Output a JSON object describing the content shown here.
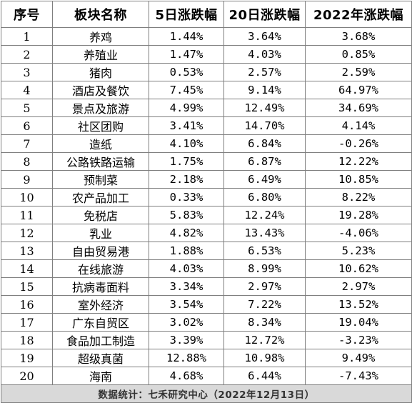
{
  "headers": [
    "序号",
    "板块名称",
    "5日涨跌幅",
    "20日涨跌幅",
    "2022年涨跌幅"
  ],
  "rows": [
    [
      "1",
      "养鸡",
      "1.44%",
      "3.64%",
      "3.68%"
    ],
    [
      "2",
      "养殖业",
      "1.47%",
      "4.03%",
      "0.85%"
    ],
    [
      "3",
      "猪肉",
      "0.53%",
      "2.57%",
      "2.59%"
    ],
    [
      "4",
      "酒店及餐饮",
      "7.45%",
      "9.14%",
      "64.97%"
    ],
    [
      "5",
      "景点及旅游",
      "4.99%",
      "12.49%",
      "34.69%"
    ],
    [
      "6",
      "社区团购",
      "3.41%",
      "14.70%",
      "4.14%"
    ],
    [
      "7",
      "造纸",
      "4.10%",
      "6.84%",
      "-0.26%"
    ],
    [
      "8",
      "公路铁路运输",
      "1.75%",
      "6.87%",
      "12.22%"
    ],
    [
      "9",
      "预制菜",
      "2.18%",
      "6.49%",
      "10.85%"
    ],
    [
      "10",
      "农产品加工",
      "0.33%",
      "6.80%",
      "8.22%"
    ],
    [
      "11",
      "免税店",
      "5.83%",
      "12.24%",
      "19.28%"
    ],
    [
      "12",
      "乳业",
      "4.82%",
      "13.43%",
      "-4.06%"
    ],
    [
      "13",
      "自由贸易港",
      "1.88%",
      "6.53%",
      "5.23%"
    ],
    [
      "14",
      "在线旅游",
      "4.03%",
      "8.99%",
      "10.62%"
    ],
    [
      "15",
      "抗病毒面料",
      "3.34%",
      "2.97%",
      "2.97%"
    ],
    [
      "16",
      "室外经济",
      "3.54%",
      "7.22%",
      "13.52%"
    ],
    [
      "17",
      "广东自贸区",
      "3.02%",
      "8.34%",
      "19.04%"
    ],
    [
      "18",
      "食品加工制造",
      "3.39%",
      "12.72%",
      "-3.23%"
    ],
    [
      "19",
      "超级真菌",
      "12.88%",
      "10.98%",
      "9.49%"
    ],
    [
      "20",
      "海南",
      "4.68%",
      "6.44%",
      "-7.43%"
    ]
  ],
  "footer": "数据统计：七禾研究中心（2022年12月13日）"
}
